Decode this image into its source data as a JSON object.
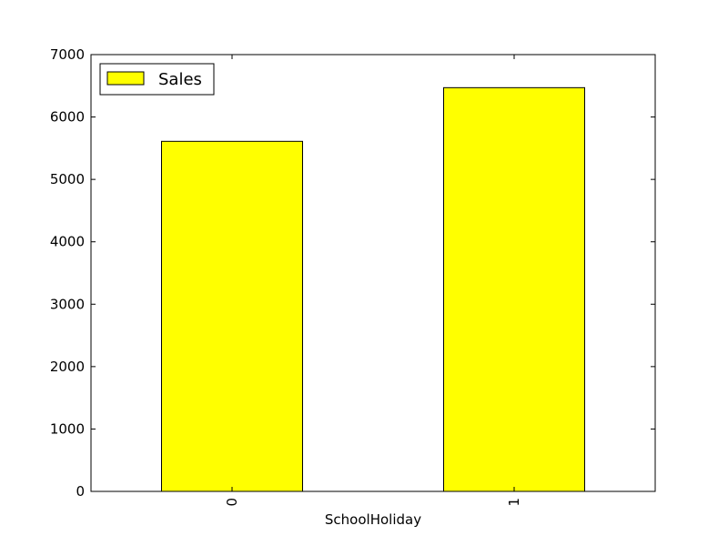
{
  "chart_data": {
    "type": "bar",
    "categories": [
      "0",
      "1"
    ],
    "series": [
      {
        "name": "Sales",
        "values": [
          5610,
          6470
        ],
        "color": "#ffff00"
      }
    ],
    "xlabel": "SchoolHoliday",
    "ylabel": "",
    "ylim": [
      0,
      7000
    ],
    "yticks": [
      0,
      1000,
      2000,
      3000,
      4000,
      5000,
      6000,
      7000
    ],
    "grid": false,
    "legend_position": "top-left",
    "xtick_rotation": "vertical"
  }
}
